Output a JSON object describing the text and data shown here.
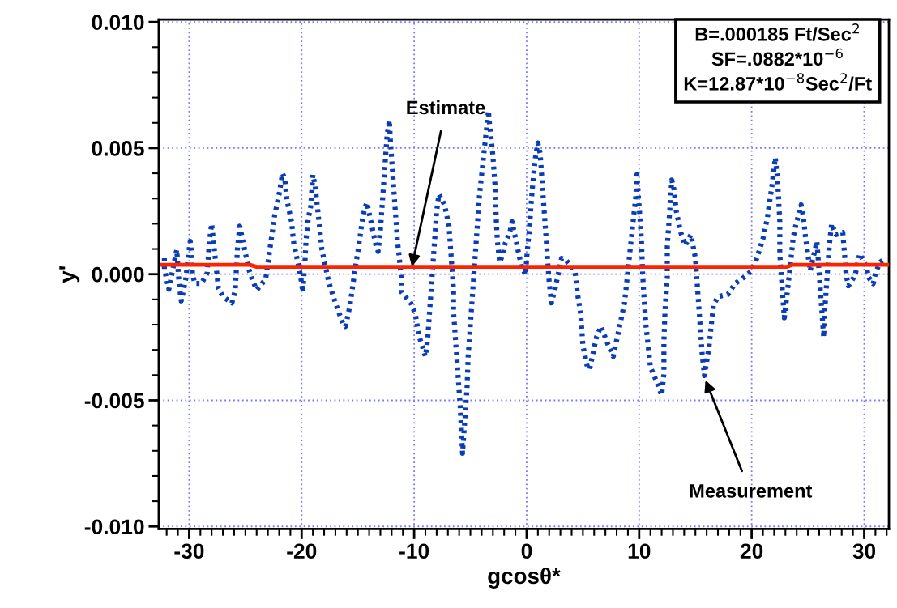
{
  "chart_data": {
    "type": "line",
    "xlabel": "gcosθ*",
    "ylabel": "y'",
    "xlim": [
      -32.7,
      32.2
    ],
    "xticks": [
      -30,
      -20,
      -10,
      0,
      10,
      20,
      30
    ],
    "ylim": [
      -0.0101,
      0.0101
    ],
    "yticks": [
      {
        "value": -0.01,
        "label": "-0.010"
      },
      {
        "value": -0.005,
        "label": "-0.005"
      },
      {
        "value": 0,
        "label": "0.000"
      },
      {
        "value": 0.005,
        "label": "0.005"
      },
      {
        "value": 0.01,
        "label": "0.010"
      }
    ],
    "grid": true,
    "legend": false,
    "series": [
      {
        "color": "#0a3cb4",
        "line_style": "dotted",
        "x": [
          -32.2,
          -32.2,
          -31.8,
          -31.6,
          -31.1,
          -30.9,
          -30.7,
          -30.5,
          -30.3,
          -30.1,
          -29.9,
          -29.8,
          -29.7,
          -29.5,
          -28.9,
          -28.4,
          -28.2,
          -28.0,
          -27.8,
          -27.6,
          -27.4,
          -27.0,
          -26.2,
          -25.9,
          -25.7,
          -25.5,
          -25.1,
          -24.7,
          -24.4,
          -24.0,
          -23.2,
          -22.8,
          -22.4,
          -22.0,
          -21.7,
          -21.5,
          -21.3,
          -20.9,
          -20.7,
          -20.3,
          -20.1,
          -19.9,
          -19.7,
          -19.6,
          -19.4,
          -19.2,
          -19.0,
          -18.8,
          -18.6,
          -18.4,
          -18.2,
          -17.8,
          -17.6,
          -17.0,
          -16.3,
          -16.1,
          -15.7,
          -15.3,
          -15.0,
          -14.6,
          -14.4,
          -14.2,
          -13.8,
          -13.4,
          -13.2,
          -13.0,
          -12.8,
          -12.6,
          -12.4,
          -12.2,
          -12.1,
          -11.9,
          -11.7,
          -11.5,
          -11.3,
          -11.1,
          -11.1,
          -10.3,
          -9.9,
          -9.6,
          -9.0,
          -8.8,
          -8.6,
          -8.4,
          -8.2,
          -8.0,
          -7.8,
          -7.3,
          -6.9,
          -6.7,
          -6.5,
          -6.5,
          -6.3,
          -6.1,
          -5.9,
          -5.7,
          -5.5,
          -5.3,
          -5.2,
          -5.0,
          -4.8,
          -4.6,
          -4.4,
          -4.2,
          -4.0,
          -3.8,
          -3.6,
          -3.4,
          -3.3,
          -3.0,
          -2.8,
          -2.7,
          -2.6,
          -2.4,
          -2.1,
          -1.9,
          -1.5,
          -1.3,
          -0.9,
          -0.5,
          -0.1,
          0.05,
          0.24,
          0.43,
          0.6,
          0.8,
          1.0,
          1.2,
          1.4,
          1.6,
          1.8,
          2.0,
          2.2,
          2.5,
          2.9,
          3.1,
          3.5,
          4.3,
          4.5,
          4.8,
          5.0,
          5.4,
          5.6,
          6.0,
          6.2,
          6.6,
          7.2,
          7.7,
          8.1,
          8.7,
          8.9,
          9.1,
          9.3,
          9.5,
          9.7,
          9.8,
          10.0,
          10.2,
          10.3,
          10.4,
          10.6,
          10.8,
          11.0,
          11.4,
          12.0,
          12.2,
          12.2,
          12.3,
          12.5,
          12.5,
          12.7,
          12.9,
          13.1,
          13.3,
          13.7,
          14.1,
          14.6,
          15.0,
          15.2,
          15.4,
          15.6,
          15.8,
          16.2,
          16.4,
          16.6,
          17.0,
          17.9,
          18.5,
          19.3,
          20.0,
          20.4,
          21.0,
          21.4,
          21.8,
          22.1,
          22.3,
          22.5,
          22.5,
          22.7,
          22.9,
          23.3,
          23.5,
          23.7,
          23.9,
          24.4,
          24.6,
          24.8,
          25.2,
          25.6,
          25.8,
          26.0,
          26.2,
          26.4,
          26.5,
          26.7,
          26.9,
          27.1,
          27.5,
          28.1,
          28.4,
          28.6,
          29.2,
          29.6,
          30.2,
          30.4,
          30.8,
          31.0,
          31.4,
          31.9
        ],
        "values": [
          0.00063,
          0.0002,
          -0.0006,
          -0.00014,
          0.00097,
          -0.00037,
          -0.00106,
          -0.00063,
          -0.0002,
          0.00063,
          0.0013,
          0.0009,
          0.0,
          -0.00037,
          -0.00037,
          4e-05,
          0.0013,
          0.002,
          0.00114,
          0.00029,
          -0.00056,
          -0.00089,
          -0.00114,
          -0.00063,
          0.00106,
          0.0019,
          0.00106,
          0.0002,
          -0.0002,
          -0.00063,
          -0.0002,
          0.00106,
          0.00233,
          0.00317,
          0.004,
          0.00377,
          0.00292,
          0.00208,
          0.00123,
          0.00038,
          -4e-05,
          -0.00072,
          0.00055,
          0.0014,
          0.00224,
          0.00267,
          0.00394,
          0.0035,
          0.00267,
          0.00182,
          0.00097,
          0.00013,
          -0.0003,
          -0.00114,
          -0.002,
          -0.00207,
          -0.00123,
          4e-05,
          0.0009,
          0.00216,
          0.0026,
          0.00284,
          0.002,
          0.00114,
          0.0009,
          0.00174,
          0.003,
          0.00428,
          0.00555,
          0.0061,
          0.0052,
          0.00394,
          0.00267,
          0.0014,
          0.00055,
          -0.0003,
          -0.00072,
          -0.00114,
          -0.00157,
          -0.0024,
          -0.00326,
          -0.00258,
          -0.00131,
          -4e-05,
          0.00123,
          0.0025,
          0.00317,
          0.00275,
          0.0019,
          0.00063,
          -0.00063,
          -0.00148,
          -0.00275,
          -0.004,
          -0.00529,
          -0.0071,
          -0.0058,
          -0.00453,
          -0.00326,
          -0.002,
          -0.00072,
          0.00055,
          0.00182,
          0.00309,
          0.00394,
          0.00478,
          0.00563,
          0.00648,
          0.00597,
          0.0047,
          0.00343,
          0.00216,
          0.0013,
          0.00047,
          0.0008,
          0.00123,
          0.00165,
          0.00208,
          0.00123,
          0.00038,
          -4e-05,
          0.0009,
          0.00174,
          0.003,
          0.00385,
          0.0047,
          0.0052,
          0.00478,
          0.0035,
          0.00224,
          0.00097,
          -0.0003,
          -0.00114,
          -0.00063,
          0.0002,
          0.00063,
          0.00055,
          0.00013,
          -0.00072,
          -0.00157,
          -0.00283,
          -0.00368,
          -0.00377,
          -0.00292,
          -0.0025,
          -0.00207,
          -0.00275,
          -0.00326,
          -0.0024,
          -0.00114,
          -0.0003,
          0.00055,
          0.0014,
          0.00224,
          0.00309,
          0.00394,
          0.00267,
          0.0014,
          0.00013,
          -0.00072,
          -0.002,
          -0.00283,
          -0.00368,
          -0.0041,
          -0.0048,
          -0.00395,
          -0.00268,
          -0.0014,
          -0.00014,
          0.00113,
          0.0024,
          0.00373,
          0.00335,
          0.0025,
          0.00165,
          0.00114,
          0.00157,
          0.00063,
          -0.00063,
          -0.0019,
          -0.00317,
          -0.00402,
          -0.00292,
          -0.00207,
          -0.00123,
          -0.00089,
          -0.0008,
          -0.00038,
          -0.00013,
          0.00013,
          0.00055,
          0.0014,
          0.00224,
          0.0035,
          0.00462,
          0.00377,
          0.00208,
          0.00081,
          -0.00046,
          -0.00173,
          -0.0002,
          0.00063,
          0.00148,
          0.0019,
          0.00275,
          0.00224,
          0.0014,
          0.00013,
          0.0009,
          0.0013,
          4e-05,
          -0.00123,
          -0.0025,
          -0.0014,
          -0.00013,
          0.00114,
          0.002,
          0.00157,
          0.00165,
          -4e-05,
          -0.00046,
          -4e-05,
          0.00081,
          0.0003,
          -0.00013,
          -0.00038,
          4e-05,
          0.00047,
          0.00063
        ]
      },
      {
        "color": "#ff2200",
        "line_style": "solid",
        "x": [
          -32.4,
          -24.6,
          -24.0,
          23.1,
          23.6,
          32.1
        ],
        "values": [
          0.00037,
          0.00037,
          0.00029,
          0.00029,
          0.00037,
          0.00037
        ]
      }
    ],
    "annotations": [
      {
        "text": "Estimate",
        "x": -10.2,
        "y": 0.0003
      },
      {
        "text": "Measurement",
        "x": 15.9,
        "y": -0.0042
      },
      "B=.000185 Ft/Sec$^{2}$\nSF=.0882*10$^{−6}$\nK=12.87*10$^{−8}$Sec$^{2}$/Ft"
    ]
  }
}
